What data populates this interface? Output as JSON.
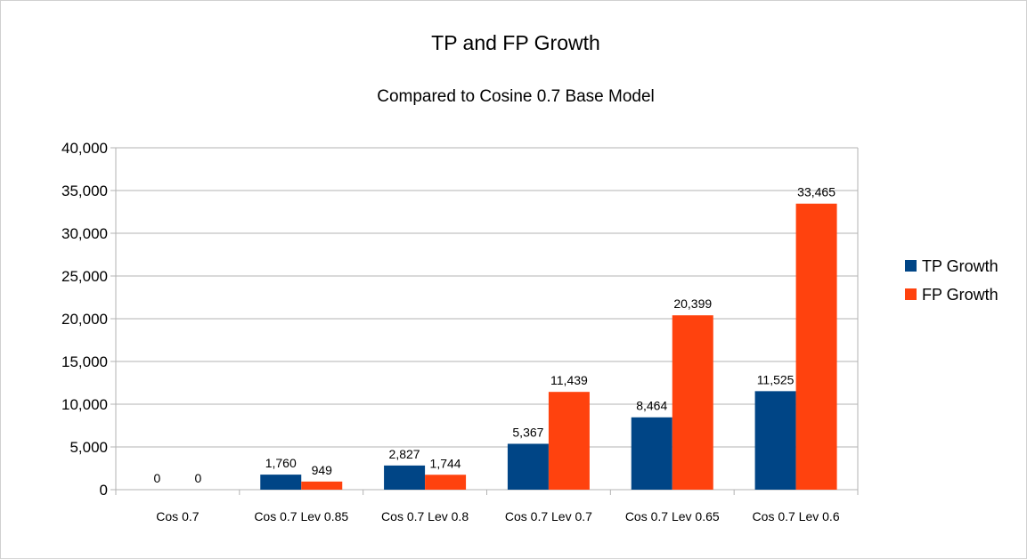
{
  "chart_data": {
    "type": "bar",
    "title": "TP and FP Growth",
    "subtitle": "Compared to Cosine 0.7 Base Model",
    "xlabel": "",
    "ylabel": "",
    "categories": [
      "Cos 0.7",
      "Cos 0.7 Lev 0.85",
      "Cos 0.7 Lev 0.8",
      "Cos 0.7 Lev 0.7",
      "Cos 0.7 Lev 0.65",
      "Cos 0.7 Lev 0.6"
    ],
    "series": [
      {
        "name": "TP Growth",
        "color": "#004586",
        "values": [
          0,
          1760,
          2827,
          5367,
          8464,
          11525
        ],
        "labels": [
          "0",
          "1,760",
          "2,827",
          "5,367",
          "8,464",
          "11,525"
        ]
      },
      {
        "name": "FP Growth",
        "color": "#ff420e",
        "values": [
          0,
          949,
          1744,
          11439,
          20399,
          33465
        ],
        "labels": [
          "0",
          "949",
          "1,744",
          "11,439",
          "20,399",
          "33,465"
        ]
      }
    ],
    "ylim": [
      0,
      40000
    ],
    "yticks": [
      0,
      5000,
      10000,
      15000,
      20000,
      25000,
      30000,
      35000,
      40000
    ],
    "ytick_labels": [
      "0",
      "5,000",
      "10,000",
      "15,000",
      "20,000",
      "25,000",
      "30,000",
      "35,000",
      "40,000"
    ],
    "grid": true,
    "legend_position": "right"
  }
}
